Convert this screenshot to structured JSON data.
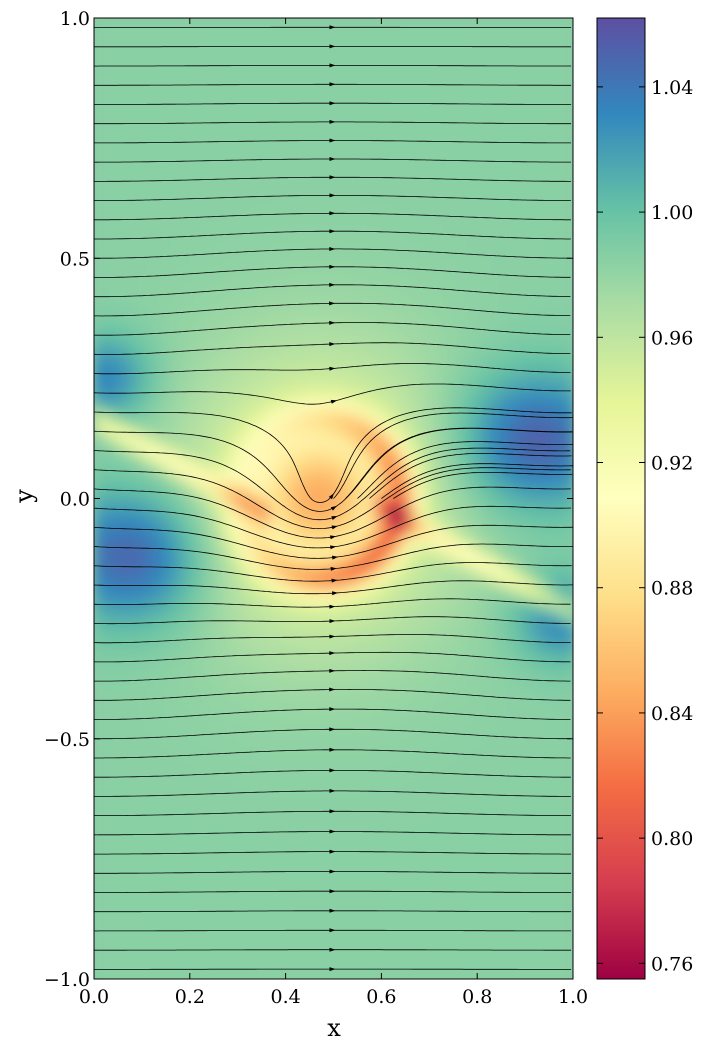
{
  "chart_data": {
    "type": "heatmap",
    "title": "",
    "xlabel": "x",
    "ylabel": "y",
    "xlim": [
      0.0,
      1.0
    ],
    "ylim": [
      -1.0,
      1.0
    ],
    "x_ticks": [
      0.0,
      0.2,
      0.4,
      0.6,
      0.8,
      1.0
    ],
    "x_tick_labels": [
      "0.0",
      "0.2",
      "0.4",
      "0.6",
      "0.8",
      "1.0"
    ],
    "y_ticks": [
      -1.0,
      -0.5,
      0.0,
      0.5,
      1.0
    ],
    "y_tick_labels": [
      "−1.0",
      "−0.5",
      "0.0",
      "0.5",
      "1.0"
    ],
    "colorbar": {
      "range": [
        0.755,
        1.062
      ],
      "ticks": [
        0.76,
        0.8,
        0.84,
        0.88,
        0.92,
        0.96,
        1.0,
        1.04
      ],
      "tick_labels": [
        "0.76",
        "0.80",
        "0.84",
        "0.88",
        "0.92",
        "0.96",
        "1.00",
        "1.04"
      ],
      "colormap": "Spectral",
      "colormap_stops": [
        "#9e0142",
        "#d53e4f",
        "#f46d43",
        "#fdae61",
        "#fee08b",
        "#ffffbf",
        "#e6f598",
        "#abdda4",
        "#66c2a5",
        "#3288bd",
        "#5e4fa2"
      ]
    },
    "field_description_values": {
      "background_level": 0.985,
      "vortex_center": [
        0.47,
        0.0
      ],
      "min_level": 0.76,
      "max_level": 1.06
    },
    "overlay": "streamlines",
    "grid": false
  }
}
